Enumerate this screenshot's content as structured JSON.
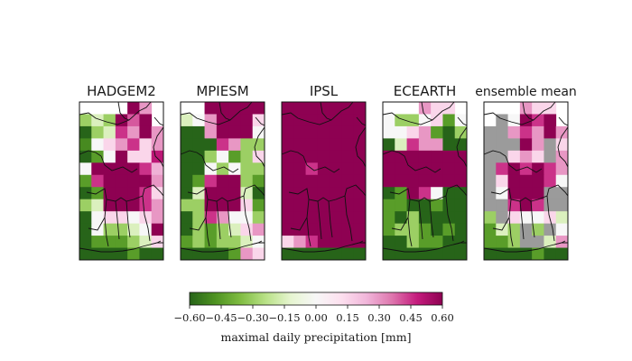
{
  "chart_data": {
    "type": "heatmap",
    "panels": [
      {
        "title": "HADGEM2",
        "grid": [
          [
            null,
            null,
            null,
            null,
            0.6,
            0.3,
            null
          ],
          [
            -0.3,
            -0.15,
            -0.3,
            0.6,
            0.4,
            0.6,
            null
          ],
          [
            -0.6,
            -0.3,
            -0.15,
            0.45,
            0.3,
            0.6,
            0.3
          ],
          [
            -0.5,
            0.0,
            0.15,
            0.3,
            0.45,
            0.15,
            0.3
          ],
          [
            -0.6,
            -0.45,
            0.0,
            0.6,
            0.15,
            0.15,
            0.5
          ],
          [
            0.0,
            0.6,
            0.6,
            0.6,
            0.6,
            0.45,
            0.25
          ],
          [
            -0.45,
            0.45,
            0.6,
            0.6,
            0.6,
            0.6,
            0.3
          ],
          [
            -0.6,
            -0.45,
            0.6,
            0.6,
            0.6,
            0.45,
            0.15
          ],
          [
            -0.3,
            -0.15,
            0.6,
            0.6,
            0.6,
            0.45,
            0.3
          ],
          [
            -0.6,
            0.0,
            0.15,
            0.15,
            0.0,
            0.15,
            0.3
          ],
          [
            -0.6,
            0.0,
            -0.3,
            -0.3,
            -0.15,
            0.0,
            0.6
          ],
          [
            -0.6,
            -0.45,
            -0.45,
            -0.45,
            -0.3,
            -0.15,
            0.15
          ],
          [
            -0.6,
            -0.6,
            -0.6,
            -0.6,
            -0.45,
            -0.6,
            -0.6
          ]
        ]
      },
      {
        "title": "MPIESM",
        "grid": [
          [
            null,
            null,
            0.6,
            0.6,
            0.6,
            0.6,
            0.6
          ],
          [
            -0.15,
            0.0,
            0.3,
            0.6,
            0.6,
            0.6,
            0.15
          ],
          [
            -0.6,
            -0.6,
            0.3,
            0.6,
            0.6,
            0.6,
            0.0
          ],
          [
            -0.6,
            -0.6,
            -0.6,
            0.45,
            0.3,
            -0.3,
            -0.3
          ],
          [
            -0.6,
            -0.6,
            -0.3,
            0.0,
            -0.45,
            -0.3,
            0.15
          ],
          [
            -0.6,
            -0.6,
            0.0,
            -0.3,
            0.0,
            -0.3,
            -0.3
          ],
          [
            -0.6,
            -0.45,
            0.45,
            0.6,
            0.6,
            -0.3,
            -0.45
          ],
          [
            -0.6,
            -0.15,
            0.6,
            0.6,
            0.6,
            -0.15,
            -0.6
          ],
          [
            -0.3,
            -0.3,
            0.6,
            0.6,
            0.6,
            0.15,
            -0.45
          ],
          [
            -0.6,
            -0.3,
            0.45,
            0.3,
            0.0,
            0.0,
            -0.3
          ],
          [
            -0.6,
            -0.3,
            -0.45,
            -0.3,
            -0.15,
            0.15,
            0.3
          ],
          [
            -0.45,
            -0.3,
            -0.45,
            -0.3,
            -0.3,
            -0.15,
            0.0
          ],
          [
            -0.6,
            -0.6,
            -0.6,
            -0.6,
            -0.45,
            0.3,
            0.15
          ]
        ]
      },
      {
        "title": "IPSL",
        "grid": [
          [
            0.6,
            0.6,
            0.6,
            0.6,
            0.6,
            0.6,
            0.6
          ],
          [
            0.6,
            0.6,
            0.6,
            0.6,
            0.6,
            0.6,
            0.6
          ],
          [
            0.6,
            0.6,
            0.6,
            0.6,
            0.6,
            0.6,
            0.6
          ],
          [
            0.6,
            0.6,
            0.6,
            0.6,
            0.6,
            0.6,
            0.6
          ],
          [
            0.6,
            0.6,
            0.6,
            0.6,
            0.6,
            0.6,
            0.6
          ],
          [
            0.6,
            0.6,
            0.45,
            0.6,
            0.6,
            0.6,
            0.6
          ],
          [
            0.6,
            0.6,
            0.6,
            0.6,
            0.6,
            0.6,
            0.6
          ],
          [
            0.6,
            0.6,
            0.6,
            0.6,
            0.6,
            0.6,
            0.6
          ],
          [
            0.6,
            0.6,
            0.6,
            0.6,
            0.6,
            0.6,
            0.6
          ],
          [
            0.6,
            0.6,
            0.6,
            0.6,
            0.6,
            0.6,
            0.6
          ],
          [
            0.6,
            0.6,
            0.6,
            0.6,
            0.6,
            0.6,
            0.6
          ],
          [
            0.15,
            0.3,
            0.45,
            0.6,
            0.6,
            0.6,
            0.6
          ],
          [
            -0.6,
            -0.6,
            -0.6,
            -0.6,
            -0.6,
            -0.6,
            -0.6
          ]
        ]
      },
      {
        "title": "ECEARTH",
        "grid": [
          [
            null,
            null,
            null,
            0.3,
            0.15,
            0.15,
            null
          ],
          [
            0.0,
            -0.3,
            -0.3,
            0.0,
            0.15,
            -0.45,
            0.0
          ],
          [
            0.0,
            0.0,
            0.15,
            0.3,
            -0.45,
            -0.6,
            -0.3
          ],
          [
            -0.6,
            -0.15,
            0.45,
            0.3,
            0.3,
            -0.6,
            -0.6
          ],
          [
            0.6,
            0.6,
            0.6,
            0.6,
            0.6,
            0.6,
            0.6
          ],
          [
            0.6,
            0.6,
            0.6,
            0.6,
            0.6,
            0.6,
            0.6
          ],
          [
            0.6,
            0.6,
            0.6,
            0.6,
            0.6,
            0.6,
            0.6
          ],
          [
            -0.6,
            -0.45,
            0.6,
            0.45,
            0.0,
            -0.6,
            -0.6
          ],
          [
            -0.45,
            -0.45,
            -0.6,
            -0.6,
            -0.45,
            -0.6,
            -0.6
          ],
          [
            -0.45,
            -0.6,
            -0.3,
            -0.6,
            -0.6,
            -0.6,
            -0.6
          ],
          [
            -0.45,
            -0.3,
            -0.3,
            -0.45,
            -0.6,
            -0.45,
            -0.6
          ],
          [
            -0.6,
            -0.6,
            -0.3,
            -0.45,
            -0.45,
            -0.6,
            -0.6
          ],
          [
            -0.6,
            -0.6,
            -0.6,
            -0.6,
            -0.6,
            -0.6,
            -0.6
          ]
        ]
      },
      {
        "title": "ensemble mean",
        "grid": [
          [
            null,
            null,
            null,
            0.3,
            0.15,
            0.15,
            null
          ],
          [
            null,
            "NA",
            0.0,
            0.6,
            0.45,
            0.6,
            null
          ],
          [
            "NA",
            "NA",
            0.3,
            0.45,
            0.3,
            0.6,
            0.3
          ],
          [
            "NA",
            "NA",
            "NA",
            0.6,
            0.3,
            "NA",
            0.15
          ],
          [
            "NA",
            "NA",
            0.15,
            0.3,
            0.15,
            "NA",
            0.3
          ],
          [
            "NA",
            0.45,
            0.6,
            0.45,
            0.6,
            0.45,
            0.3
          ],
          [
            "NA",
            0.15,
            0.6,
            0.6,
            0.6,
            0.45,
            0.0
          ],
          [
            "NA",
            0.0,
            0.6,
            0.6,
            0.6,
            "NA",
            "NA"
          ],
          [
            "NA",
            "NA",
            0.45,
            0.6,
            0.45,
            "NA",
            "NA"
          ],
          [
            -0.3,
            "NA",
            0.15,
            0.0,
            0.0,
            0.15,
            -0.15
          ],
          [
            -0.45,
            -0.15,
            -0.3,
            "NA",
            -0.3,
            "NA",
            0.0
          ],
          [
            -0.45,
            -0.45,
            -0.3,
            "NA",
            "NA",
            -0.15,
            0.3
          ],
          [
            -0.6,
            -0.6,
            -0.6,
            -0.6,
            -0.45,
            -0.6,
            -0.6
          ]
        ]
      }
    ],
    "colormap": "PiYG_r",
    "vmin": -0.6,
    "vmax": 0.6,
    "nodata_color": "#9b9b9b",
    "colorbar": {
      "orientation": "horizontal",
      "placement": "bottom",
      "ticks": [
        -0.6,
        -0.45,
        -0.3,
        -0.15,
        0.0,
        0.15,
        0.3,
        0.45,
        0.6
      ],
      "tick_labels": [
        "−0.60",
        "−0.45",
        "−0.30",
        "−0.15",
        "0.00",
        "0.15",
        "0.30",
        "0.45",
        "0.60"
      ],
      "label": "maximal daily precipitation [mm]"
    },
    "colors": {
      "green_dark": "#276419",
      "green_mid": "#7fbc41",
      "green_light": "#e6f5d0",
      "neutral": "#f7f7f7",
      "pink_light": "#fde0ef",
      "pink_mid": "#de77ae",
      "magenta_dark": "#8e0152"
    }
  }
}
